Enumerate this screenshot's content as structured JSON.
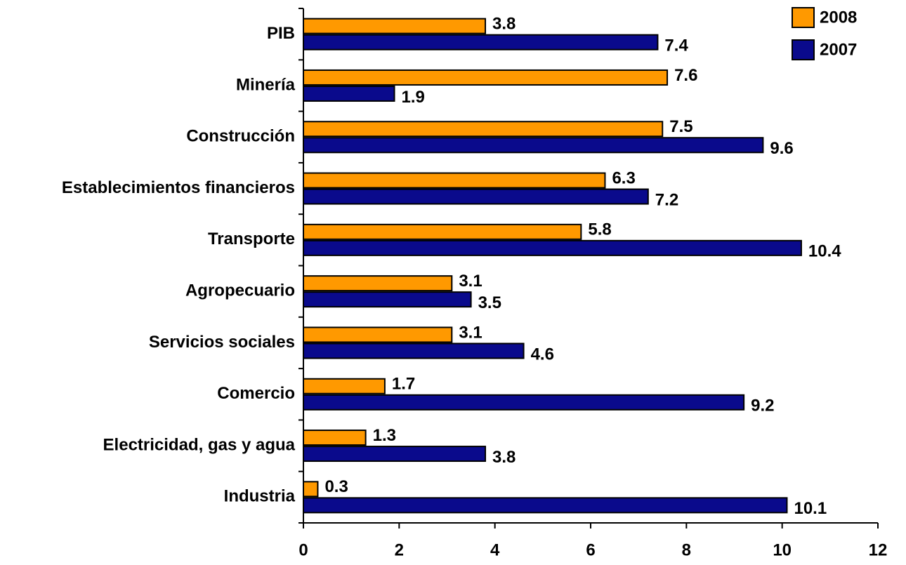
{
  "chart_data": {
    "type": "bar",
    "orientation": "horizontal",
    "categories": [
      "PIB",
      "Minería",
      "Construcción",
      "Establecimientos financieros",
      "Transporte",
      "Agropecuario",
      "Servicios sociales",
      "Comercio",
      "Electricidad, gas y agua",
      "Industria"
    ],
    "series": [
      {
        "name": "2008",
        "color": "#ff9900",
        "values": [
          3.8,
          7.6,
          7.5,
          6.3,
          5.8,
          3.1,
          3.1,
          1.7,
          1.3,
          0.3
        ]
      },
      {
        "name": "2007",
        "color": "#0a0a8c",
        "values": [
          7.4,
          1.9,
          9.6,
          7.2,
          10.4,
          3.5,
          4.6,
          9.2,
          3.8,
          10.1
        ]
      }
    ],
    "xlim": [
      0,
      12
    ],
    "xticks": [
      0,
      2,
      4,
      6,
      8,
      10,
      12
    ],
    "grid": false,
    "legend": "top-right"
  }
}
